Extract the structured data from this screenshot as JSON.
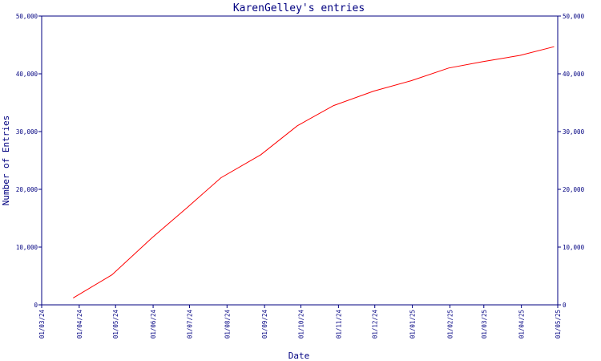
{
  "chart_data": {
    "type": "line",
    "title": "KarenGelley's entries",
    "xlabel": "Date",
    "ylabel": "Number of Entries",
    "ylim": [
      0,
      50000
    ],
    "y_ticks": [
      0,
      10000,
      20000,
      30000,
      40000,
      50000
    ],
    "y_tick_labels": [
      "0",
      "10,000",
      "20,000",
      "30,000",
      "40,000",
      "50,000"
    ],
    "x_ticks": [
      "2024-03-01",
      "2024-04-01",
      "2024-05-01",
      "2024-06-01",
      "2024-07-01",
      "2024-08-01",
      "2024-09-01",
      "2024-10-01",
      "2024-11-01",
      "2024-12-01",
      "2025-01-01",
      "2025-02-01",
      "2025-03-01",
      "2025-04-01",
      "2025-05-01"
    ],
    "x_tick_labels": [
      "01/03/24",
      "01/04/24",
      "01/05/24",
      "01/06/24",
      "01/07/24",
      "01/08/24",
      "01/09/24",
      "01/10/24",
      "01/11/24",
      "01/12/24",
      "01/01/25",
      "01/02/25",
      "01/03/25",
      "01/04/25",
      "01/05/25"
    ],
    "xlim": [
      "2024-03-01",
      "2025-05-01"
    ],
    "grid": false,
    "series": [
      {
        "color": "#ff0000",
        "x": [
          "2024-03-27",
          "2024-04-28",
          "2024-05-31",
          "2024-06-30",
          "2024-07-27",
          "2024-08-29",
          "2024-09-28",
          "2024-10-28",
          "2024-11-30",
          "2024-12-31",
          "2025-01-31",
          "2025-02-28",
          "2025-03-31",
          "2025-04-28"
        ],
        "values": [
          1200,
          5200,
          11600,
          17000,
          22000,
          26000,
          31000,
          34500,
          37000,
          38800,
          41000,
          42100,
          43200,
          44700
        ]
      }
    ]
  }
}
